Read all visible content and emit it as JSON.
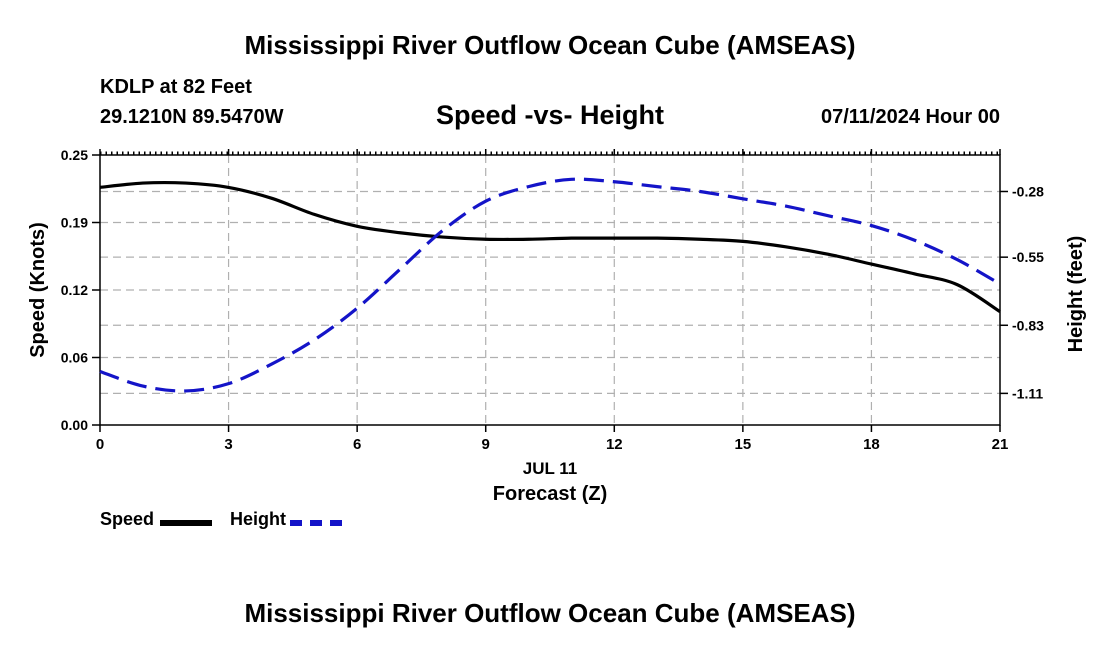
{
  "title": "Mississippi River Outflow Ocean Cube (AMSEAS)",
  "station": "KDLP at 82 Feet",
  "coords": "29.1210N  89.5470W",
  "subtitle": "Speed -vs- Height",
  "datetime": "07/11/2024 Hour 00",
  "footer_title": "Mississippi River Outflow Ocean Cube (AMSEAS)",
  "colors": {
    "speed": "#000000",
    "height": "#1414c8",
    "grid": "#b0b0b0"
  },
  "legend": {
    "speed": "Speed",
    "height": "Height"
  },
  "chart_data": {
    "type": "line",
    "xlabel": "Forecast (Z)",
    "date_label": "JUL 11",
    "ylabel_left": "Speed (Knots)",
    "ylabel_right": "Height (feet)",
    "x_ticks": [
      "0",
      "3",
      "6",
      "9",
      "12",
      "15",
      "18",
      "21"
    ],
    "xlim": [
      0,
      21
    ],
    "ylim_left": [
      0.0,
      0.25
    ],
    "left_ticks": [
      "0.00",
      "0.06",
      "0.12",
      "0.19",
      "0.25"
    ],
    "left_tick_values": [
      0.0,
      0.0625,
      0.125,
      0.1875,
      0.25
    ],
    "right_ticks": [
      "-0.28",
      "-0.55",
      "-0.83",
      "-1.11"
    ],
    "right_tick_values": [
      -0.28,
      -0.55,
      -0.83,
      -1.11
    ],
    "ylim_right": [
      -1.24,
      -0.13
    ],
    "series": [
      {
        "name": "Speed",
        "axis": "left",
        "style": "solid",
        "x": [
          0,
          1,
          2,
          3,
          4,
          5,
          6,
          7,
          8,
          9,
          10,
          11,
          12,
          13,
          14,
          15,
          16,
          17,
          18,
          19,
          20,
          21
        ],
        "values": [
          0.22,
          0.224,
          0.224,
          0.22,
          0.21,
          0.195,
          0.184,
          0.178,
          0.174,
          0.172,
          0.172,
          0.173,
          0.173,
          0.173,
          0.172,
          0.17,
          0.165,
          0.158,
          0.149,
          0.14,
          0.13,
          0.105
        ]
      },
      {
        "name": "Height",
        "axis": "right",
        "style": "dashed",
        "x": [
          0,
          1,
          2,
          3,
          4,
          5,
          6,
          7,
          8,
          9,
          10,
          11,
          12,
          13,
          14,
          15,
          16,
          17,
          18,
          19,
          20,
          21
        ],
        "values": [
          -1.02,
          -1.08,
          -1.1,
          -1.07,
          -0.99,
          -0.89,
          -0.76,
          -0.6,
          -0.44,
          -0.32,
          -0.26,
          -0.23,
          -0.24,
          -0.26,
          -0.28,
          -0.31,
          -0.34,
          -0.38,
          -0.42,
          -0.48,
          -0.56,
          -0.66
        ]
      }
    ]
  }
}
